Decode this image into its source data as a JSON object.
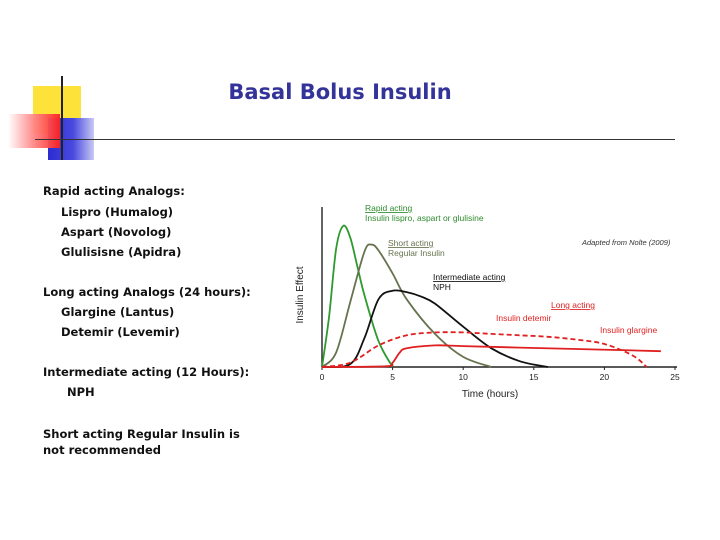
{
  "slide": {
    "title": "Basal Bolus Insulin",
    "lines": [
      "Rapid acting Analogs:",
      "Lispro (Humalog)",
      "Aspart (Novolog)",
      "Glulisisne (Apidra)",
      "Long acting Analogs (24 hours):",
      "Glargine (Lantus)",
      "Detemir (Levemir)",
      "Intermediate acting (12 Hours):",
      "NPH",
      "Short acting Regular Insulin is",
      "not recommended"
    ]
  },
  "chart_data": {
    "type": "line",
    "xlabel": "Time (hours)",
    "ylabel": "Insulin Effect",
    "xlim": [
      0,
      25
    ],
    "ylim": [
      0,
      10
    ],
    "xticks": [
      0,
      5,
      10,
      15,
      20,
      25
    ],
    "grid": false,
    "credit": "Adapted from Nolte (2009)",
    "annotations": [
      {
        "heading": "Rapid acting",
        "detail": "Insulin lispro, aspart or glulisine",
        "color": "#2e8b2e"
      },
      {
        "heading": "Short acting",
        "detail": "Regular Insulin",
        "color": "#66734d"
      },
      {
        "heading": "Intermediate acting",
        "detail": "NPH",
        "color": "#111111"
      },
      {
        "heading": "Long acting",
        "detail": "",
        "color": "#e02020"
      },
      {
        "heading": "Insulin detemir",
        "detail": "",
        "color": "#e02020"
      },
      {
        "heading": "Insulin glargine",
        "detail": "",
        "color": "#e02020"
      }
    ],
    "series": [
      {
        "name": "Rapid acting",
        "color": "#2e9a2e",
        "dash": false,
        "x": [
          0,
          0.5,
          1.0,
          1.5,
          2.0,
          2.5,
          3.0,
          4.0,
          5.0
        ],
        "y": [
          0,
          3.5,
          8.2,
          9.8,
          9.0,
          7.0,
          5.0,
          1.8,
          0
        ]
      },
      {
        "name": "Regular Insulin",
        "color": "#66734d",
        "dash": false,
        "x": [
          0,
          1.0,
          2.0,
          3.0,
          3.5,
          4.0,
          5.0,
          6.0,
          8.0,
          10.0,
          12.0
        ],
        "y": [
          0,
          1.0,
          4.5,
          8.0,
          8.5,
          8.1,
          6.5,
          4.7,
          2.3,
          0.7,
          0
        ]
      },
      {
        "name": "NPH",
        "color": "#111111",
        "dash": false,
        "x": [
          0,
          2.0,
          3.0,
          4.0,
          5.0,
          6.0,
          7.0,
          8.0,
          10.0,
          12.0,
          14.0,
          16.0
        ],
        "y": [
          0,
          0.2,
          2.0,
          4.7,
          5.3,
          5.2,
          4.9,
          4.4,
          2.8,
          1.3,
          0.4,
          0
        ]
      },
      {
        "name": "Insulin detemir",
        "color": "#e02020",
        "dash": true,
        "x": [
          0,
          2.0,
          4.0,
          6.0,
          8.0,
          10.0,
          12.0,
          14.0,
          16.0,
          18.0,
          20.0,
          22.0,
          23.0
        ],
        "y": [
          0,
          0.3,
          1.5,
          2.2,
          2.4,
          2.4,
          2.3,
          2.2,
          2.1,
          1.9,
          1.6,
          0.8,
          0
        ]
      },
      {
        "name": "Insulin glargine",
        "color": "#e02020",
        "dash": false,
        "x": [
          0,
          4.5,
          5.0,
          5.5,
          6.0,
          8.0,
          10.0,
          14.0,
          18.0,
          22.0,
          24.0
        ],
        "y": [
          0,
          0.05,
          0.3,
          1.0,
          1.3,
          1.5,
          1.45,
          1.35,
          1.25,
          1.15,
          1.1
        ]
      }
    ]
  }
}
